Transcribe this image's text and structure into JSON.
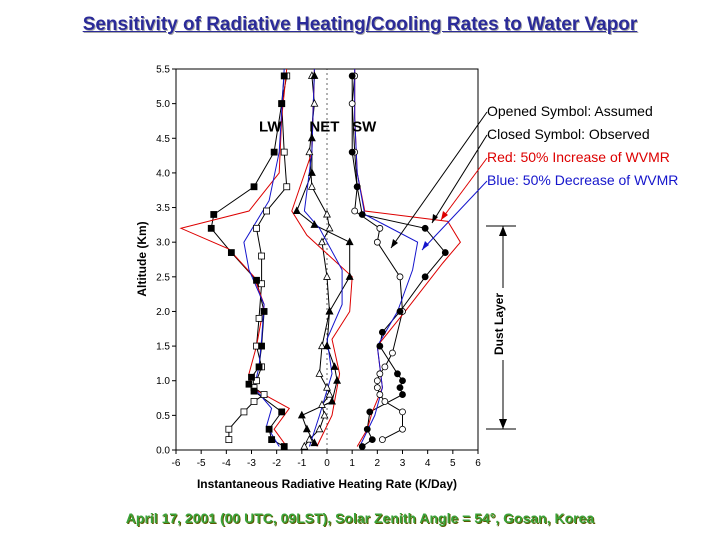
{
  "title": "Sensitivity of Radiative Heating/Cooling Rates to Water Vapor",
  "footer": "April 17, 2001 (00 UTC, 09LST), Solar Zenith Angle = 54°, Gosan, Korea",
  "chart_data": {
    "type": "line",
    "xlabel": "Instantaneous Radiative Heating Rate (K/Day)",
    "ylabel": "Altitude (Km)",
    "xlim": [
      -6,
      6
    ],
    "ylim": [
      0,
      5.5
    ],
    "xticks": [
      "-6",
      "-5",
      "-4",
      "-3",
      "-2",
      "-1",
      "0",
      "1",
      "2",
      "3",
      "4",
      "5",
      "6"
    ],
    "yticks": [
      "0.0",
      "0.5",
      "1.0",
      "1.5",
      "2.0",
      "2.5",
      "3.0",
      "3.5",
      "4.0",
      "4.5",
      "5.0",
      "5.5"
    ],
    "group_labels": [
      {
        "text": "LW",
        "x": -2.7,
        "y": 4.6
      },
      {
        "text": "NET",
        "x": -0.7,
        "y": 4.6
      },
      {
        "text": "SW",
        "x": 1.0,
        "y": 4.6
      }
    ],
    "legend": [
      {
        "text": "Opened Symbol: Assumed",
        "color": "#000000"
      },
      {
        "text": "Closed Symbol: Observed",
        "color": "#000000"
      },
      {
        "text": "Red: 50% Increase of WVMR",
        "color": "#dd0000"
      },
      {
        "text": "Blue: 50% Decrease of WVMR",
        "color": "#1515cc"
      }
    ],
    "dust_layer": {
      "label": "Dust Layer",
      "y_bottom": 0.3,
      "y_top": 3.25
    },
    "series": [
      {
        "group": "LW",
        "style": "assumed",
        "color": "#000000",
        "marker": "square",
        "filled": false,
        "x": [
          -3.9,
          -3.9,
          -3.3,
          -2.9,
          -2.5,
          -2.9,
          -2.8,
          -2.6,
          -2.8,
          -2.7,
          -2.6,
          -2.6,
          -2.8,
          -2.4,
          -1.6,
          -1.7,
          -1.8,
          -1.6
        ],
        "y": [
          0.15,
          0.3,
          0.55,
          0.7,
          0.8,
          0.9,
          1.0,
          1.2,
          1.5,
          1.9,
          2.4,
          2.8,
          3.2,
          3.45,
          3.8,
          4.3,
          5.0,
          5.4
        ]
      },
      {
        "group": "LW",
        "style": "observed",
        "color": "#000000",
        "marker": "square",
        "filled": true,
        "x": [
          -1.7,
          -2.2,
          -2.3,
          -1.8,
          -2.9,
          -3.1,
          -3.0,
          -2.7,
          -2.6,
          -2.5,
          -2.8,
          -3.8,
          -4.6,
          -4.5,
          -2.9,
          -2.1,
          -1.8,
          -1.7
        ],
        "y": [
          0.05,
          0.15,
          0.3,
          0.55,
          0.85,
          0.95,
          1.05,
          1.2,
          1.5,
          2.0,
          2.45,
          2.85,
          3.2,
          3.4,
          3.8,
          4.3,
          5.0,
          5.4
        ]
      },
      {
        "group": "LW",
        "style": "increase",
        "color": "#dd0000",
        "marker": "none",
        "filled": false,
        "x": [
          -1.6,
          -2.1,
          -1.5,
          -3.0,
          -3.1,
          -2.8,
          -2.5,
          -2.9,
          -3.9,
          -5.8,
          -3.1,
          -1.9,
          -1.8,
          -1.6
        ],
        "y": [
          0.05,
          0.3,
          0.6,
          0.9,
          1.1,
          1.5,
          2.1,
          2.5,
          2.9,
          3.2,
          3.45,
          4.0,
          4.8,
          5.5
        ]
      },
      {
        "group": "LW",
        "style": "decrease",
        "color": "#1515cc",
        "marker": "none",
        "filled": false,
        "x": [
          -1.9,
          -2.4,
          -2.2,
          -2.9,
          -2.7,
          -2.6,
          -2.5,
          -3.1,
          -3.3,
          -2.3,
          -1.9,
          -1.7
        ],
        "y": [
          0.05,
          0.35,
          0.6,
          0.9,
          1.2,
          1.6,
          2.1,
          2.6,
          3.0,
          3.6,
          4.3,
          5.5
        ]
      },
      {
        "group": "NET",
        "style": "assumed",
        "color": "#000000",
        "marker": "triangle",
        "filled": false,
        "x": [
          -0.9,
          -0.7,
          -0.3,
          -0.1,
          -0.2,
          0.1,
          0.0,
          -0.3,
          -0.2,
          0.1,
          0.0,
          -0.2,
          0.1,
          0.0,
          -0.6,
          -0.7,
          -0.5,
          -0.6
        ],
        "y": [
          0.05,
          0.15,
          0.3,
          0.5,
          0.65,
          0.8,
          0.9,
          1.1,
          1.5,
          2.0,
          2.5,
          3.0,
          3.2,
          3.4,
          3.8,
          4.3,
          5.0,
          5.4
        ]
      },
      {
        "group": "NET",
        "style": "observed",
        "color": "#000000",
        "marker": "triangle",
        "filled": true,
        "x": [
          -0.5,
          -0.8,
          -1.0,
          0.2,
          0.4,
          0.3,
          0.0,
          0.1,
          0.9,
          0.9,
          -0.5,
          -1.2,
          -0.6,
          -0.6,
          -0.5
        ],
        "y": [
          0.1,
          0.3,
          0.5,
          0.7,
          1.0,
          1.2,
          1.5,
          2.0,
          2.5,
          3.0,
          3.25,
          3.45,
          4.0,
          4.5,
          5.4
        ]
      },
      {
        "group": "NET",
        "style": "increase",
        "color": "#dd0000",
        "marker": "none",
        "filled": false,
        "x": [
          -0.4,
          0.2,
          0.5,
          0.2,
          0.9,
          1.0,
          -0.8,
          -1.4,
          -0.6,
          -0.5
        ],
        "y": [
          0.05,
          0.5,
          1.1,
          1.6,
          2.0,
          2.5,
          3.1,
          3.45,
          4.3,
          5.5
        ]
      },
      {
        "group": "NET",
        "style": "decrease",
        "color": "#1515cc",
        "marker": "none",
        "filled": false,
        "x": [
          -0.7,
          -0.3,
          0.2,
          0.0,
          0.6,
          0.6,
          -0.3,
          -0.9,
          -0.6,
          -0.5
        ],
        "y": [
          0.05,
          0.5,
          1.1,
          1.6,
          2.1,
          2.6,
          3.2,
          3.45,
          4.3,
          5.5
        ]
      },
      {
        "group": "SW",
        "style": "assumed",
        "color": "#000000",
        "marker": "circle",
        "filled": false,
        "x": [
          2.2,
          3.0,
          3.0,
          2.3,
          2.1,
          2.0,
          2.0,
          2.1,
          2.3,
          2.6,
          3.0,
          2.9,
          2.0,
          2.1,
          1.1,
          1.2,
          1.1,
          1.0,
          1.1
        ],
        "y": [
          0.15,
          0.3,
          0.55,
          0.7,
          0.8,
          0.9,
          1.0,
          1.1,
          1.2,
          1.4,
          2.0,
          2.5,
          3.0,
          3.2,
          3.45,
          3.8,
          4.3,
          5.0,
          5.4
        ]
      },
      {
        "group": "SW",
        "style": "observed",
        "color": "#000000",
        "marker": "circle",
        "filled": true,
        "x": [
          1.4,
          1.8,
          1.6,
          1.7,
          3.0,
          2.9,
          3.0,
          2.8,
          2.1,
          2.2,
          2.9,
          3.9,
          4.7,
          3.9,
          1.4,
          1.2,
          1.0,
          1.0
        ],
        "y": [
          0.05,
          0.15,
          0.3,
          0.55,
          0.8,
          0.9,
          1.0,
          1.1,
          1.5,
          1.7,
          2.0,
          2.5,
          2.85,
          3.2,
          3.4,
          3.8,
          4.3,
          5.4
        ]
      },
      {
        "group": "SW",
        "style": "increase",
        "color": "#dd0000",
        "marker": "none",
        "filled": false,
        "x": [
          1.2,
          1.6,
          1.8,
          2.2,
          2.0,
          3.1,
          4.6,
          5.3,
          4.8,
          1.5,
          1.2,
          1.1,
          1.1
        ],
        "y": [
          0.05,
          0.3,
          0.55,
          0.9,
          1.5,
          2.0,
          2.7,
          3.0,
          3.3,
          3.45,
          4.0,
          4.8,
          5.5
        ]
      },
      {
        "group": "SW",
        "style": "decrease",
        "color": "#1515cc",
        "marker": "none",
        "filled": false,
        "x": [
          1.3,
          1.9,
          2.2,
          2.0,
          2.8,
          3.4,
          3.6,
          1.5,
          1.2,
          1.1,
          1.1
        ],
        "y": [
          0.05,
          0.5,
          0.9,
          1.5,
          2.0,
          2.6,
          3.0,
          3.4,
          4.0,
          4.8,
          5.5
        ]
      }
    ],
    "grid": false
  }
}
